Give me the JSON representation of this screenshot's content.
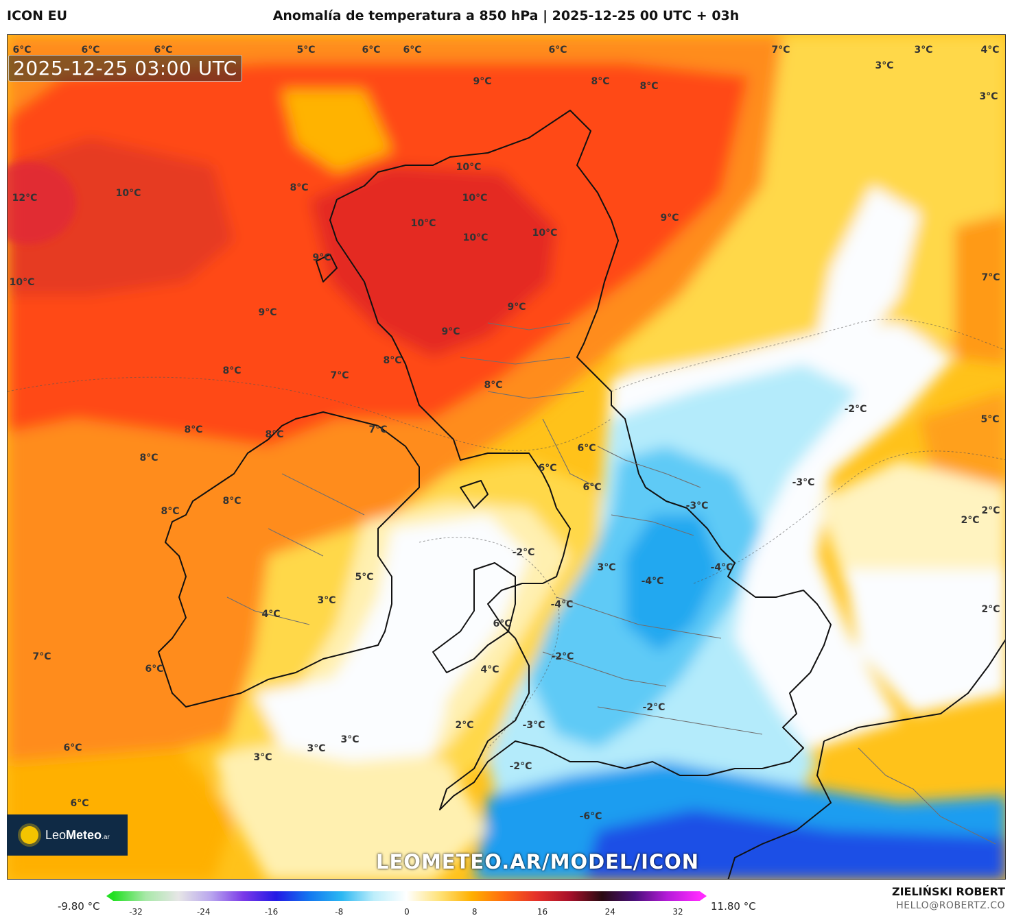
{
  "header": {
    "model": "ICON EU",
    "title": "Anomalía de temperatura a 850 hPa | 2025-12-25 00 UTC + 03h"
  },
  "map": {
    "timestamp": "2025-12-25 03:00 UTC",
    "watermark": "LEOMETEO.AR/MODEL/ICON",
    "logo_text": "Leo",
    "logo_text_bold": "Meteo",
    "logo_suffix": ".ar",
    "labels": [
      "6°C",
      "6°C",
      "6°C",
      "5°C",
      "6°C",
      "6°C",
      "6°C",
      "7°C",
      "3°C",
      "4°C",
      "3°C",
      "3°C",
      "9°C",
      "8°C",
      "8°C",
      "10°C",
      "12°C",
      "10°C",
      "8°C",
      "10°C",
      "10°C",
      "10°C",
      "10°C",
      "9°C",
      "10°C",
      "9°C",
      "9°C",
      "9°C",
      "7°C",
      "7°C",
      "8°C",
      "8°C",
      "8°C",
      "9°C",
      "8°C",
      "-2°C",
      "5°C",
      "8°C",
      "7°C",
      "8°C",
      "6°C",
      "6°C",
      "6°C",
      "-3°C",
      "8°C",
      "8°C",
      "-3°C",
      "2°C",
      "2°C",
      "-2°C",
      "-4°C",
      "5°C",
      "3°C",
      "4°C",
      "3°C",
      "-4°C",
      "-4°C",
      "2°C",
      "6°C",
      "-2°C",
      "7°C",
      "6°C",
      "4°C",
      "-2°C",
      "2°C",
      "-3°C",
      "3°C",
      "3°C",
      "3°C",
      "6°C",
      "-2°C",
      "6°C",
      "-6°C"
    ],
    "colors": {
      "warm_deep": "#d8222a",
      "warm": "#ff4a12",
      "orange": "#ff8c1a",
      "amber": "#ffb300",
      "yellow": "#ffd84a",
      "pale": "#fff0b0",
      "white": "#fbfdff",
      "ice": "#b4ebfb",
      "cold": "#5fcaf6",
      "colder": "#1e9df0",
      "deep_cold": "#1a4fe6",
      "coast": "#111111",
      "border": "#7a7a7a"
    }
  },
  "colorbar": {
    "min_label": "-9.80 °C",
    "max_label": "11.80 °C",
    "ticks": [
      "-32",
      "-24",
      "-16",
      "-8",
      "0",
      "8",
      "16",
      "24",
      "32"
    ],
    "stops": [
      "#22e022",
      "#a8e8a8",
      "#e6e6e6",
      "#b9a6ee",
      "#7a39e8",
      "#2319e5",
      "#1276f0",
      "#2bb7f2",
      "#bdeefb",
      "#ffffff",
      "#ffe37a",
      "#ffb000",
      "#ff6a10",
      "#e4302a",
      "#a8102a",
      "#2a0a12",
      "#4a0f7a",
      "#b41bd8",
      "#ff2bff"
    ]
  },
  "credits": {
    "author": "ZIELIŃSKI ROBERT",
    "email": "HELLO@ROBERTZ.CO"
  }
}
